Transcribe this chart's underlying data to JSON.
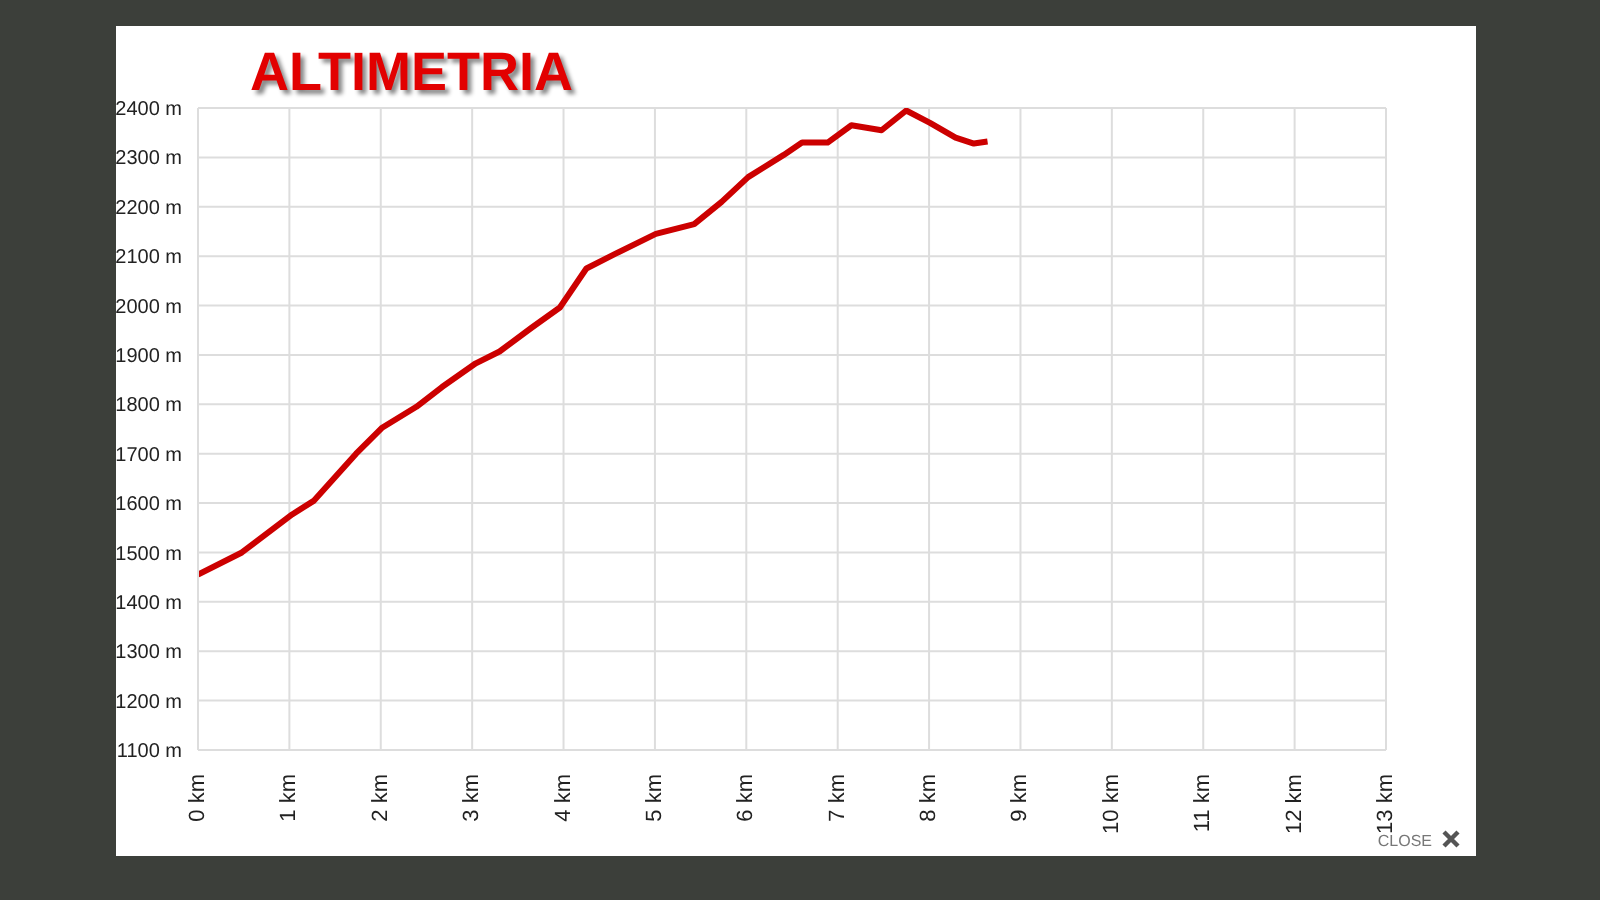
{
  "chart_data": {
    "type": "line",
    "title": "ALTIMETRIA",
    "x": [
      0,
      0.48,
      1.03,
      1.27,
      1.73,
      2.01,
      2.39,
      2.67,
      3.04,
      3.3,
      3.65,
      3.96,
      4.25,
      4.57,
      5.01,
      5.43,
      5.73,
      6.02,
      6.41,
      6.61,
      6.89,
      7.15,
      7.48,
      7.75,
      8.01,
      8.29,
      8.49,
      8.64
    ],
    "series": [
      {
        "color": "#cc0000",
        "values": [
          1455,
          1500,
          1577,
          1605,
          1700,
          1752,
          1795,
          1835,
          1883,
          1907,
          1955,
          1996,
          2075,
          2105,
          2145,
          2165,
          2210,
          2260,
          2305,
          2330,
          2330,
          2365,
          2355,
          2395,
          2370,
          2340,
          2328,
          2332
        ]
      }
    ],
    "xlim": [
      0,
      13
    ],
    "xticks": [
      {
        "value": 0,
        "label": "0 km"
      },
      {
        "value": 1,
        "label": "1 km"
      },
      {
        "value": 2,
        "label": "2 km"
      },
      {
        "value": 3,
        "label": "3 km"
      },
      {
        "value": 4,
        "label": "4 km"
      },
      {
        "value": 5,
        "label": "5 km"
      },
      {
        "value": 6,
        "label": "6 km"
      },
      {
        "value": 7,
        "label": "7 km"
      },
      {
        "value": 8,
        "label": "8 km"
      },
      {
        "value": 9,
        "label": "9 km"
      },
      {
        "value": 10,
        "label": "10 km"
      },
      {
        "value": 11,
        "label": "11 km"
      },
      {
        "value": 12,
        "label": "12 km"
      },
      {
        "value": 13,
        "label": "13 km"
      }
    ],
    "ylim": [
      1100,
      2400
    ],
    "yticks": [
      {
        "value": 1100,
        "label": "1100 m"
      },
      {
        "value": 1200,
        "label": "1200 m"
      },
      {
        "value": 1300,
        "label": "1300 m"
      },
      {
        "value": 1400,
        "label": "1400 m"
      },
      {
        "value": 1500,
        "label": "1500 m"
      },
      {
        "value": 1600,
        "label": "1600 m"
      },
      {
        "value": 1700,
        "label": "1700 m"
      },
      {
        "value": 1800,
        "label": "1800 m"
      },
      {
        "value": 1900,
        "label": "1900 m"
      },
      {
        "value": 2000,
        "label": "2000 m"
      },
      {
        "value": 2100,
        "label": "2100 m"
      },
      {
        "value": 2200,
        "label": "2200 m"
      },
      {
        "value": 2300,
        "label": "2300 m"
      },
      {
        "value": 2400,
        "label": "2400 m"
      }
    ],
    "grid": true,
    "legend": false,
    "marker": "none",
    "line_style": "solid",
    "annotations": [
      "CLOSE"
    ]
  }
}
